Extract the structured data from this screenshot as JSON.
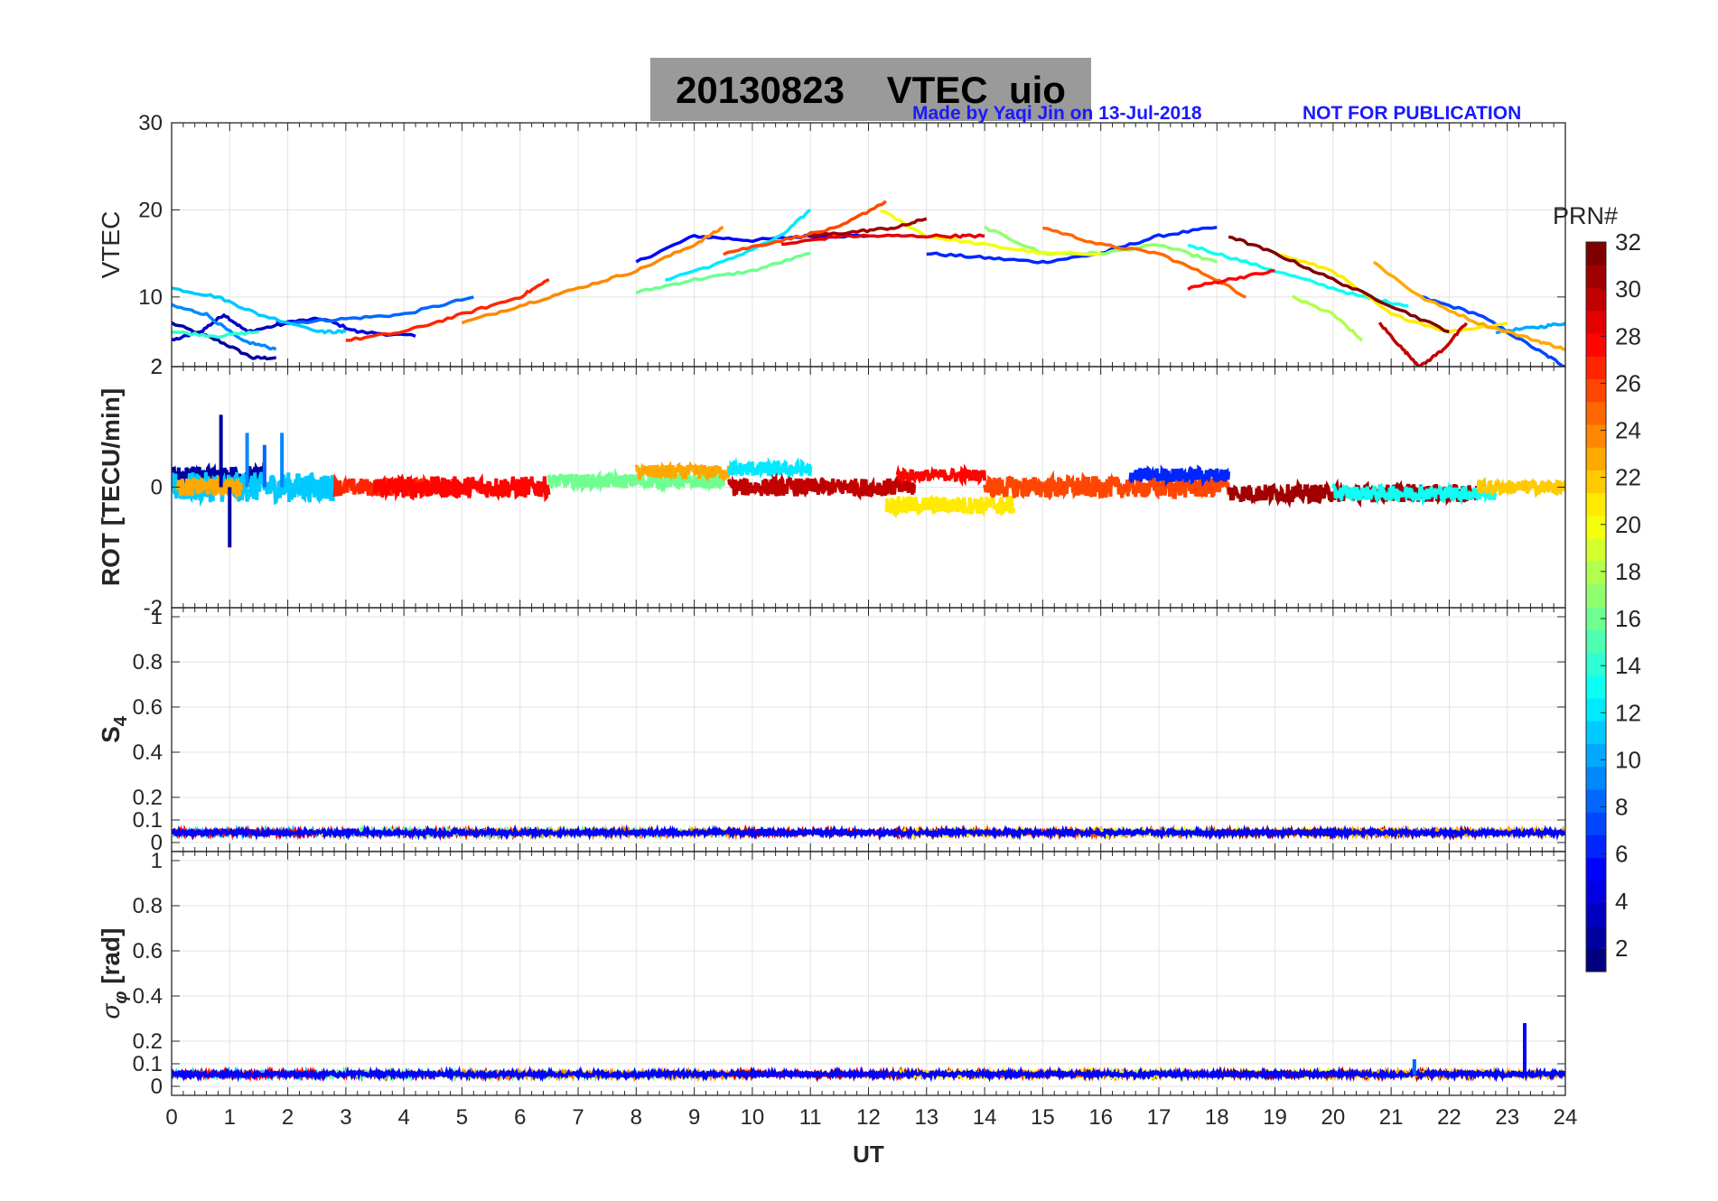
{
  "header": {
    "title": "20130823    VTEC  uio",
    "credit": "Made by Yaqi Jin on 13-Jul-2018",
    "note": "NOT FOR PUBLICATION"
  },
  "chart_data": [
    {
      "type": "line",
      "panel": "VTEC",
      "ylabel": "VTEC",
      "xlim": [
        0,
        24
      ],
      "ylim": [
        2,
        30
      ],
      "yticks": [
        2,
        10,
        20,
        30
      ],
      "ytick_labels": [
        "2",
        "10",
        "20",
        "30"
      ],
      "grid": true,
      "series": [
        {
          "prn": 2,
          "x": [
            0,
            0.8,
            1.4,
            1.8
          ],
          "y": [
            7,
            5,
            3,
            3
          ]
        },
        {
          "prn": 3,
          "x": [
            0,
            0.5,
            0.9,
            1.3,
            2.0
          ],
          "y": [
            5,
            6,
            8,
            6,
            7
          ]
        },
        {
          "prn": 4,
          "x": [
            1.8,
            2.6,
            3.2,
            4.2
          ],
          "y": [
            7,
            7.5,
            6,
            5.5
          ]
        },
        {
          "prn": 5,
          "x": [
            8.0,
            9.0,
            10.0,
            11.0,
            12.0
          ],
          "y": [
            14,
            17,
            16.5,
            17,
            17
          ]
        },
        {
          "prn": 6,
          "x": [
            13.0,
            14.0,
            15.0,
            16.0,
            17.0,
            18.0
          ],
          "y": [
            15,
            14.5,
            14,
            15,
            17,
            18
          ]
        },
        {
          "prn": 7,
          "x": [
            21.5,
            22.5,
            23.5,
            24.0
          ],
          "y": [
            10,
            8,
            4,
            2
          ]
        },
        {
          "prn": 8,
          "x": [
            2.0,
            3.0,
            4.0,
            5.2
          ],
          "y": [
            7,
            7.5,
            8,
            10
          ]
        },
        {
          "prn": 9,
          "x": [
            0,
            0.6,
            1.2,
            1.8
          ],
          "y": [
            9,
            8,
            5,
            4
          ]
        },
        {
          "prn": 10,
          "x": [
            22.8,
            23.5,
            24.0
          ],
          "y": [
            6,
            6.5,
            7
          ]
        },
        {
          "prn": 11,
          "x": [
            0,
            0.8,
            1.5,
            2.6,
            3.0
          ],
          "y": [
            11,
            10,
            8,
            6,
            6
          ]
        },
        {
          "prn": 12,
          "x": [
            8.5,
            9.5,
            10.5,
            11.0
          ],
          "y": [
            12,
            14,
            17,
            20
          ]
        },
        {
          "prn": 13,
          "x": [
            17.5,
            18.5,
            19.5,
            20.5,
            21.3
          ],
          "y": [
            16,
            14,
            12,
            10,
            9
          ]
        },
        {
          "prn": 14,
          "x": [
            0,
            0.8,
            1.5
          ],
          "y": [
            6,
            5.5,
            6
          ]
        },
        {
          "prn": 16,
          "x": [
            8.0,
            9.0,
            10.0,
            11.0
          ],
          "y": [
            10.5,
            12,
            13,
            15
          ]
        },
        {
          "prn": 17,
          "x": [
            14.0,
            15.0,
            16.0,
            17.0,
            18.0
          ],
          "y": [
            18,
            15,
            15,
            16,
            14
          ]
        },
        {
          "prn": 18,
          "x": [
            19.3,
            20.0,
            20.5
          ],
          "y": [
            10,
            8,
            5
          ]
        },
        {
          "prn": 20,
          "x": [
            12.2,
            13.0,
            14.0,
            15.0,
            16.0
          ],
          "y": [
            20,
            17,
            16,
            15,
            15
          ]
        },
        {
          "prn": 21,
          "x": [
            19.0,
            20.0,
            21.0,
            22.0,
            23.0
          ],
          "y": [
            15,
            13,
            8,
            6,
            7
          ]
        },
        {
          "prn": 23,
          "x": [
            20.7,
            21.5,
            22.5,
            23.5,
            24.0
          ],
          "y": [
            14,
            10,
            7,
            5,
            4
          ]
        },
        {
          "prn": 24,
          "x": [
            5.0,
            6.0,
            7.0,
            8.0,
            9.0,
            9.5
          ],
          "y": [
            7,
            9,
            11,
            13,
            16,
            18
          ]
        },
        {
          "prn": 25,
          "x": [
            15.0,
            16.0,
            17.0,
            18.0,
            18.5
          ],
          "y": [
            18,
            16,
            15,
            12,
            10
          ]
        },
        {
          "prn": 26,
          "x": [
            9.5,
            10.5,
            11.5,
            12.3
          ],
          "y": [
            15,
            16.5,
            18,
            21
          ]
        },
        {
          "prn": 27,
          "x": [
            3.0,
            4.0,
            5.0,
            6.0,
            6.5
          ],
          "y": [
            5,
            6,
            8,
            10,
            12
          ]
        },
        {
          "prn": 28,
          "x": [
            17.5,
            18.2,
            19.0
          ],
          "y": [
            11,
            12,
            13
          ]
        },
        {
          "prn": 29,
          "x": [
            10.5,
            11.5,
            12.5,
            13.5,
            14.0
          ],
          "y": [
            16,
            17,
            17,
            17,
            17
          ]
        },
        {
          "prn": 30,
          "x": [
            20.8,
            21.2,
            21.5,
            21.9,
            22.3
          ],
          "y": [
            7,
            4,
            2,
            4,
            7
          ]
        },
        {
          "prn": 31,
          "x": [
            11.0,
            11.8,
            12.5,
            13.0
          ],
          "y": [
            17,
            17.5,
            18,
            19
          ]
        },
        {
          "prn": 32,
          "x": [
            18.2,
            19.0,
            20.0,
            21.0,
            22.0
          ],
          "y": [
            17,
            15,
            12,
            9,
            6
          ]
        }
      ]
    },
    {
      "type": "line",
      "panel": "ROT",
      "ylabel": "ROT [TECU/min]",
      "xlim": [
        0,
        24
      ],
      "ylim": [
        -2,
        2
      ],
      "yticks": [
        -2,
        0,
        2
      ],
      "ytick_labels": [
        "-2",
        "0",
        "2"
      ],
      "grid": true,
      "segments": [
        {
          "prn": 2,
          "x0": 0.0,
          "x1": 1.6,
          "base": 0.2,
          "amp": 0.15
        },
        {
          "prn": 11,
          "x0": 0.0,
          "x1": 2.8,
          "base": 0.0,
          "amp": 0.25
        },
        {
          "prn": 23,
          "x0": 0.1,
          "x1": 1.2,
          "base": 0.0,
          "amp": 0.15
        },
        {
          "prn": 27,
          "x0": 2.8,
          "x1": 4.5,
          "base": 0.0,
          "amp": 0.15
        },
        {
          "prn": 28,
          "x0": 3.5,
          "x1": 6.5,
          "base": 0.0,
          "amp": 0.18
        },
        {
          "prn": 16,
          "x0": 6.5,
          "x1": 9.5,
          "base": 0.1,
          "amp": 0.12
        },
        {
          "prn": 23,
          "x0": 8.0,
          "x1": 9.6,
          "base": 0.25,
          "amp": 0.12
        },
        {
          "prn": 12,
          "x0": 9.6,
          "x1": 11.0,
          "base": 0.3,
          "amp": 0.12
        },
        {
          "prn": 30,
          "x0": 9.6,
          "x1": 12.8,
          "base": 0.0,
          "amp": 0.15
        },
        {
          "prn": 28,
          "x0": 12.5,
          "x1": 14.0,
          "base": 0.2,
          "amp": 0.1
        },
        {
          "prn": 21,
          "x0": 12.3,
          "x1": 14.5,
          "base": -0.3,
          "amp": 0.15
        },
        {
          "prn": 26,
          "x0": 14.0,
          "x1": 18.2,
          "base": 0.0,
          "amp": 0.18
        },
        {
          "prn": 6,
          "x0": 16.5,
          "x1": 18.2,
          "base": 0.2,
          "amp": 0.12
        },
        {
          "prn": 31,
          "x0": 18.2,
          "x1": 22.5,
          "base": -0.1,
          "amp": 0.15
        },
        {
          "prn": 13,
          "x0": 20.0,
          "x1": 22.8,
          "base": -0.1,
          "amp": 0.12
        },
        {
          "prn": 22,
          "x0": 22.5,
          "x1": 24.0,
          "base": 0.0,
          "amp": 0.12
        }
      ],
      "spikes": [
        {
          "prn": 2,
          "x": 0.85,
          "y": 1.2
        },
        {
          "prn": 2,
          "x": 1.0,
          "y": -1.0
        },
        {
          "prn": 9,
          "x": 1.3,
          "y": 0.9
        },
        {
          "prn": 9,
          "x": 1.9,
          "y": 0.9
        },
        {
          "prn": 8,
          "x": 1.6,
          "y": 0.7
        }
      ]
    },
    {
      "type": "line",
      "panel": "S4",
      "ylabel": "S4",
      "xlim": [
        0,
        24
      ],
      "ylim": [
        0,
        1
      ],
      "yticks": [
        0,
        0.1,
        0.2,
        0.4,
        0.6,
        0.8,
        1
      ],
      "ytick_labels": [
        "0",
        "0.1",
        "0.2",
        "0.4",
        "0.6",
        "0.8",
        "1"
      ],
      "grid": true,
      "baseline": 0.04,
      "noise": 0.02
    },
    {
      "type": "line",
      "panel": "sigma-phi",
      "ylabel": "σφ [rad]",
      "xlim": [
        0,
        24
      ],
      "ylim": [
        0,
        1
      ],
      "yticks": [
        0,
        0.1,
        0.2,
        0.4,
        0.6,
        0.8,
        1
      ],
      "ytick_labels": [
        "0",
        "0.1",
        "0.2",
        "0.4",
        "0.6",
        "0.8",
        "1"
      ],
      "grid": true,
      "baseline": 0.05,
      "noise": 0.02,
      "spikes": [
        {
          "prn": 5,
          "x": 23.3,
          "y": 0.28
        },
        {
          "prn": 8,
          "x": 21.4,
          "y": 0.12
        }
      ]
    }
  ],
  "xaxis": {
    "label": "UT",
    "ticks": [
      "0",
      "1",
      "2",
      "3",
      "4",
      "5",
      "6",
      "7",
      "8",
      "9",
      "10",
      "11",
      "12",
      "13",
      "14",
      "15",
      "16",
      "17",
      "18",
      "19",
      "20",
      "21",
      "22",
      "23",
      "24"
    ]
  },
  "colorbar": {
    "label": "PRN#",
    "range": [
      1,
      32
    ],
    "ticks": [
      "2",
      "4",
      "6",
      "8",
      "10",
      "12",
      "14",
      "16",
      "18",
      "20",
      "22",
      "24",
      "26",
      "28",
      "30",
      "32"
    ]
  }
}
